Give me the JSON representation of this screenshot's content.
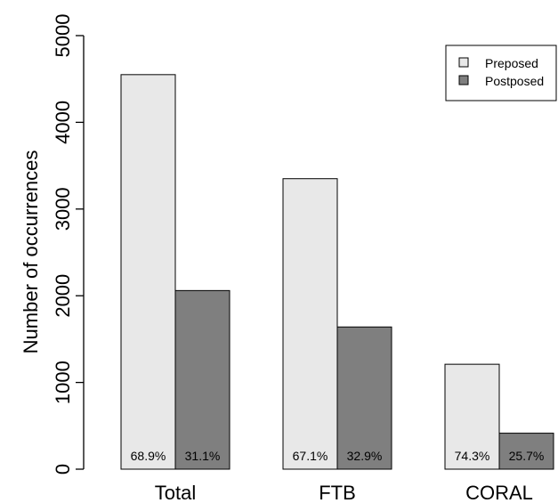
{
  "chart_data": {
    "type": "bar",
    "title": "",
    "xlabel": "",
    "ylabel": "Number of occurrences",
    "ylim": [
      0,
      5000
    ],
    "yticks": [
      "0",
      "1000",
      "2000",
      "3000",
      "4000",
      "5000"
    ],
    "categories": [
      "Total",
      "FTB",
      "CORAL"
    ],
    "series": [
      {
        "name": "Preposed",
        "color": "#e8e8e8",
        "values": [
          4550,
          3350,
          1210
        ],
        "labels": [
          "68.9%",
          "67.1%",
          "74.3%"
        ]
      },
      {
        "name": "Postposed",
        "color": "#7f7f7f",
        "values": [
          2060,
          1640,
          415
        ],
        "labels": [
          "31.1%",
          "32.9%",
          "25.7%"
        ]
      }
    ],
    "legend_position": "top-right",
    "grid": false
  }
}
